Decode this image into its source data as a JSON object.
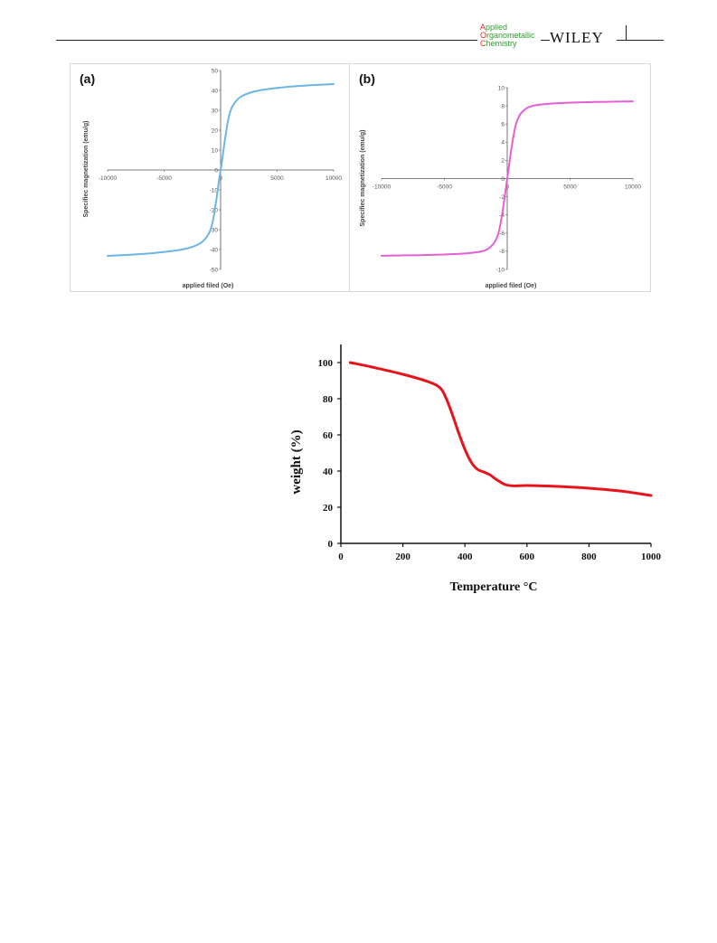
{
  "header": {
    "journal_lines": [
      {
        "initial": "A",
        "rest": "pplied"
      },
      {
        "initial": "O",
        "rest": "rganometallic"
      },
      {
        "initial": "C",
        "rest": "hemistry"
      }
    ],
    "publisher": "WILEY",
    "colors": {
      "journal_text": "#2f9e2f",
      "journal_initial": "#d12d2d"
    }
  },
  "chart_data": [
    {
      "type": "line",
      "panel_label": "(a)",
      "xlabel": "applied filed (Oe)",
      "ylabel": "Specifiec magnetization (emu/g)",
      "xlim": [
        -10000,
        10000
      ],
      "ylim": [
        -50,
        50
      ],
      "xticks": [
        -10000,
        -5000,
        0,
        5000,
        10000
      ],
      "yticks": [
        50,
        40,
        30,
        20,
        10,
        0,
        -10,
        -20,
        -30,
        -40,
        -50
      ],
      "grid": false,
      "color": "#6cb4e6",
      "x": [
        -10000,
        -8000,
        -6000,
        -4000,
        -3000,
        -2000,
        -1500,
        -1000,
        -700,
        -500,
        -300,
        -150,
        0,
        150,
        300,
        500,
        700,
        1000,
        1500,
        2000,
        3000,
        4000,
        6000,
        8000,
        10000
      ],
      "y": [
        -43.2,
        -42.6,
        -41.8,
        -40.5,
        -39.5,
        -37.5,
        -35.5,
        -31.5,
        -26,
        -19.5,
        -12,
        -5.5,
        0,
        5.5,
        12,
        19.5,
        26,
        31.5,
        35.5,
        37.5,
        39.5,
        40.5,
        41.8,
        42.6,
        43.2
      ]
    },
    {
      "type": "line",
      "panel_label": "(b)",
      "xlabel": "applied filed (Oe)",
      "ylabel": "Specifiec magnetization (emu/g)",
      "xlim": [
        -10000,
        10000
      ],
      "ylim": [
        -10,
        10
      ],
      "xticks": [
        -10000,
        -5000,
        0,
        5000,
        10000
      ],
      "yticks": [
        10,
        8,
        6,
        4,
        2,
        0,
        -2,
        -4,
        -6,
        -8,
        -10
      ],
      "grid": false,
      "color": "#e85fd3",
      "x": [
        -10000,
        -8000,
        -6000,
        -4000,
        -3000,
        -2000,
        -1500,
        -1000,
        -700,
        -500,
        -300,
        -150,
        0,
        150,
        300,
        500,
        700,
        1000,
        1500,
        2000,
        3000,
        4000,
        6000,
        8000,
        10000
      ],
      "y": [
        -8.5,
        -8.45,
        -8.4,
        -8.3,
        -8.2,
        -8.0,
        -7.7,
        -7.0,
        -6.0,
        -4.7,
        -3.0,
        -1.5,
        0,
        1.5,
        3.0,
        4.7,
        6.0,
        7.0,
        7.7,
        8.0,
        8.2,
        8.3,
        8.4,
        8.45,
        8.5
      ]
    },
    {
      "type": "line",
      "xlabel": "Temperature  °C",
      "ylabel": "weight (%)",
      "xlim": [
        0,
        1000
      ],
      "ylim": [
        0,
        110
      ],
      "xticks": [
        0,
        200,
        400,
        600,
        800,
        1000
      ],
      "yticks": [
        0,
        20,
        40,
        60,
        80,
        100
      ],
      "grid": false,
      "color": "#e8141c",
      "x": [
        30,
        100,
        200,
        280,
        320,
        340,
        360,
        380,
        400,
        420,
        440,
        460,
        480,
        500,
        530,
        560,
        600,
        700,
        800,
        900,
        950,
        1000
      ],
      "y": [
        100,
        97.5,
        93.5,
        89.5,
        86,
        80,
        71,
        61,
        52,
        45,
        41,
        39.5,
        38,
        35.5,
        32.5,
        31.8,
        32,
        31.5,
        30.5,
        29,
        27.8,
        26.5
      ]
    }
  ]
}
